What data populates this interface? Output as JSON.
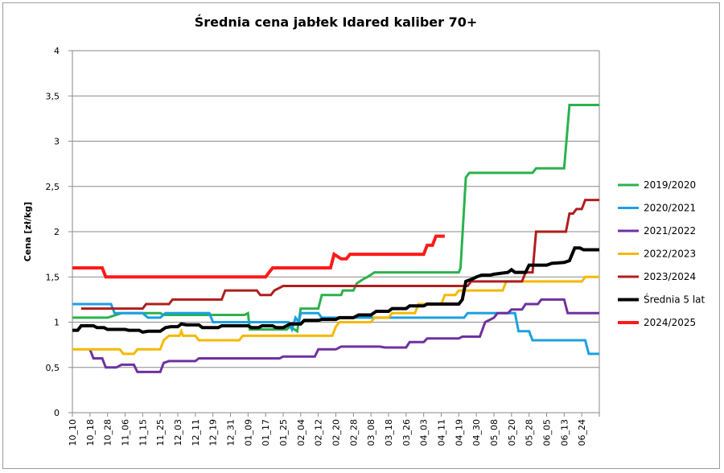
{
  "chart_data": {
    "type": "line",
    "title": "Średnia cena jabłek Idared kaliber 70+",
    "ylabel": "Cena [zł/kg]",
    "xlabel": "",
    "ylim": [
      0,
      4
    ],
    "y_ticks": [
      "0",
      "0,5",
      "1",
      "1,5",
      "2",
      "2,5",
      "3",
      "3,5",
      "4"
    ],
    "y_tick_values": [
      0,
      0.5,
      1,
      1.5,
      2,
      2.5,
      3,
      3.5,
      4
    ],
    "x_ticks": [
      "10_10",
      "10_18",
      "10_28",
      "11_06",
      "11_15",
      "11_25",
      "12_03",
      "12_11",
      "12_19",
      "12_31",
      "01_09",
      "01_17",
      "01_25",
      "02_04",
      "02_12",
      "02_20",
      "02_28",
      "03_08",
      "03_18",
      "03_26",
      "04_03",
      "04_11",
      "04_19",
      "04_30",
      "05_08",
      "05_20",
      "05_28",
      "06_05",
      "06_13",
      "06_24"
    ],
    "grid": "horizontal",
    "legend_position": "right",
    "series": [
      {
        "name": "2019/2020",
        "color": "#2bb24c",
        "width": 3,
        "points": [
          [
            0,
            1.05
          ],
          [
            2,
            1.05
          ],
          [
            2.8,
            1.1
          ],
          [
            5,
            1.1
          ],
          [
            5.2,
            1.08
          ],
          [
            9.8,
            1.08
          ],
          [
            10,
            1.1
          ],
          [
            10.1,
            0.92
          ],
          [
            12.2,
            0.92
          ],
          [
            12.4,
            0.95
          ],
          [
            12.8,
            0.9
          ],
          [
            13,
            1.15
          ],
          [
            14,
            1.15
          ],
          [
            14.2,
            1.3
          ],
          [
            15.3,
            1.3
          ],
          [
            15.4,
            1.35
          ],
          [
            16,
            1.35
          ],
          [
            16.2,
            1.43
          ],
          [
            16.6,
            1.48
          ],
          [
            16.8,
            1.5
          ],
          [
            17.2,
            1.55
          ],
          [
            22,
            1.55
          ],
          [
            22.1,
            1.6
          ],
          [
            22.4,
            2.6
          ],
          [
            22.6,
            2.65
          ],
          [
            26.2,
            2.65
          ],
          [
            26.4,
            2.7
          ],
          [
            28,
            2.7
          ],
          [
            28.3,
            3.4
          ],
          [
            30,
            3.4
          ]
        ]
      },
      {
        "name": "2020/2021",
        "color": "#1ba0e2",
        "width": 3,
        "points": [
          [
            0,
            1.2
          ],
          [
            2.2,
            1.2
          ],
          [
            2.4,
            1.1
          ],
          [
            4,
            1.1
          ],
          [
            4.3,
            1.05
          ],
          [
            5,
            1.05
          ],
          [
            5.3,
            1.1
          ],
          [
            7.8,
            1.1
          ],
          [
            8,
            1.0
          ],
          [
            12.3,
            1.0
          ],
          [
            12.5,
            0.92
          ],
          [
            12.7,
            1.05
          ],
          [
            12.9,
            1.0
          ],
          [
            13,
            1.1
          ],
          [
            14,
            1.1
          ],
          [
            14.2,
            1.05
          ],
          [
            22.3,
            1.05
          ],
          [
            22.5,
            1.1
          ],
          [
            25.2,
            1.1
          ],
          [
            25.4,
            0.9
          ],
          [
            26,
            0.9
          ],
          [
            26.2,
            0.8
          ],
          [
            29.2,
            0.8
          ],
          [
            29.4,
            0.65
          ],
          [
            30,
            0.65
          ]
        ]
      },
      {
        "name": "2021/2022",
        "color": "#7030a0",
        "width": 3,
        "points": [
          [
            1,
            0.7
          ],
          [
            1.2,
            0.6
          ],
          [
            1.7,
            0.6
          ],
          [
            1.9,
            0.5
          ],
          [
            2.5,
            0.5
          ],
          [
            2.8,
            0.53
          ],
          [
            3.5,
            0.53
          ],
          [
            3.7,
            0.45
          ],
          [
            5,
            0.45
          ],
          [
            5.2,
            0.55
          ],
          [
            5.5,
            0.57
          ],
          [
            7,
            0.57
          ],
          [
            7.2,
            0.6
          ],
          [
            11.8,
            0.6
          ],
          [
            12,
            0.62
          ],
          [
            13.8,
            0.62
          ],
          [
            14,
            0.7
          ],
          [
            15,
            0.7
          ],
          [
            15.3,
            0.73
          ],
          [
            17.5,
            0.73
          ],
          [
            17.8,
            0.72
          ],
          [
            19,
            0.72
          ],
          [
            19.2,
            0.78
          ],
          [
            20,
            0.78
          ],
          [
            20.2,
            0.82
          ],
          [
            22,
            0.82
          ],
          [
            22.2,
            0.84
          ],
          [
            23.2,
            0.84
          ],
          [
            23.5,
            1.0
          ],
          [
            24,
            1.05
          ],
          [
            24.2,
            1.1
          ],
          [
            24.8,
            1.1
          ],
          [
            25,
            1.14
          ],
          [
            25.6,
            1.14
          ],
          [
            25.8,
            1.2
          ],
          [
            26.5,
            1.2
          ],
          [
            26.7,
            1.25
          ],
          [
            28,
            1.25
          ],
          [
            28.2,
            1.1
          ],
          [
            30,
            1.1
          ]
        ]
      },
      {
        "name": "2022/2023",
        "color": "#f5b800",
        "width": 3,
        "points": [
          [
            0,
            0.7
          ],
          [
            2.7,
            0.7
          ],
          [
            2.9,
            0.65
          ],
          [
            3.5,
            0.65
          ],
          [
            3.7,
            0.7
          ],
          [
            5,
            0.7
          ],
          [
            5.2,
            0.8
          ],
          [
            5.5,
            0.85
          ],
          [
            6.1,
            0.85
          ],
          [
            6.2,
            0.9
          ],
          [
            6.3,
            0.85
          ],
          [
            7,
            0.85
          ],
          [
            7.2,
            0.8
          ],
          [
            9.5,
            0.8
          ],
          [
            9.7,
            0.85
          ],
          [
            14.8,
            0.85
          ],
          [
            15,
            0.95
          ],
          [
            15.2,
            1.0
          ],
          [
            17,
            1.0
          ],
          [
            17.2,
            1.05
          ],
          [
            18,
            1.05
          ],
          [
            18.2,
            1.1
          ],
          [
            19.5,
            1.1
          ],
          [
            19.7,
            1.2
          ],
          [
            21,
            1.2
          ],
          [
            21.2,
            1.3
          ],
          [
            21.8,
            1.3
          ],
          [
            22,
            1.35
          ],
          [
            24.5,
            1.35
          ],
          [
            24.7,
            1.45
          ],
          [
            29,
            1.45
          ],
          [
            29.2,
            1.5
          ],
          [
            30,
            1.5
          ]
        ]
      },
      {
        "name": "2023/2024",
        "color": "#b01e1e",
        "width": 3,
        "points": [
          [
            0.5,
            1.15
          ],
          [
            4,
            1.15
          ],
          [
            4.2,
            1.2
          ],
          [
            5.5,
            1.2
          ],
          [
            5.7,
            1.25
          ],
          [
            8.5,
            1.25
          ],
          [
            8.7,
            1.35
          ],
          [
            10.5,
            1.35
          ],
          [
            10.7,
            1.3
          ],
          [
            11.3,
            1.3
          ],
          [
            11.5,
            1.35
          ],
          [
            12,
            1.4
          ],
          [
            22.5,
            1.4
          ],
          [
            22.7,
            1.45
          ],
          [
            25.6,
            1.45
          ],
          [
            25.8,
            1.55
          ],
          [
            26.2,
            1.55
          ],
          [
            26.4,
            2.0
          ],
          [
            28.1,
            2.0
          ],
          [
            28.3,
            2.2
          ],
          [
            28.5,
            2.2
          ],
          [
            28.7,
            2.25
          ],
          [
            29,
            2.25
          ],
          [
            29.2,
            2.35
          ],
          [
            30,
            2.35
          ]
        ]
      },
      {
        "name": "Średnia 5 lat",
        "color": "#000000",
        "width": 4,
        "points": [
          [
            0,
            0.91
          ],
          [
            0.3,
            0.91
          ],
          [
            0.5,
            0.96
          ],
          [
            1.2,
            0.96
          ],
          [
            1.4,
            0.94
          ],
          [
            1.8,
            0.94
          ],
          [
            2,
            0.92
          ],
          [
            3,
            0.92
          ],
          [
            3.2,
            0.91
          ],
          [
            3.8,
            0.91
          ],
          [
            4,
            0.89
          ],
          [
            4.3,
            0.9
          ],
          [
            5,
            0.9
          ],
          [
            5.3,
            0.94
          ],
          [
            5.6,
            0.95
          ],
          [
            6,
            0.95
          ],
          [
            6.2,
            0.98
          ],
          [
            6.5,
            0.97
          ],
          [
            7.2,
            0.97
          ],
          [
            7.4,
            0.94
          ],
          [
            8.3,
            0.94
          ],
          [
            8.5,
            0.96
          ],
          [
            10,
            0.96
          ],
          [
            10.2,
            0.94
          ],
          [
            10.6,
            0.94
          ],
          [
            10.8,
            0.96
          ],
          [
            11.4,
            0.96
          ],
          [
            11.6,
            0.94
          ],
          [
            12,
            0.94
          ],
          [
            12.4,
            0.98
          ],
          [
            13,
            0.98
          ],
          [
            13.2,
            1.02
          ],
          [
            14,
            1.02
          ],
          [
            14.2,
            1.03
          ],
          [
            15,
            1.03
          ],
          [
            15.2,
            1.05
          ],
          [
            16,
            1.05
          ],
          [
            16.3,
            1.08
          ],
          [
            17,
            1.08
          ],
          [
            17.3,
            1.12
          ],
          [
            18,
            1.12
          ],
          [
            18.2,
            1.15
          ],
          [
            19,
            1.15
          ],
          [
            19.2,
            1.18
          ],
          [
            20,
            1.18
          ],
          [
            20.2,
            1.2
          ],
          [
            22,
            1.2
          ],
          [
            22.2,
            1.25
          ],
          [
            22.4,
            1.45
          ],
          [
            22.8,
            1.48
          ],
          [
            23,
            1.5
          ],
          [
            23.3,
            1.52
          ],
          [
            23.8,
            1.52
          ],
          [
            24,
            1.53
          ],
          [
            24.8,
            1.55
          ],
          [
            25,
            1.58
          ],
          [
            25.2,
            1.55
          ],
          [
            25.8,
            1.55
          ],
          [
            26,
            1.63
          ],
          [
            27,
            1.63
          ],
          [
            27.3,
            1.65
          ],
          [
            28,
            1.66
          ],
          [
            28.3,
            1.68
          ],
          [
            28.6,
            1.82
          ],
          [
            28.9,
            1.82
          ],
          [
            29.1,
            1.8
          ],
          [
            30,
            1.8
          ]
        ]
      },
      {
        "name": "2024/2025",
        "color": "#ff1a1a",
        "width": 4,
        "points": [
          [
            0,
            1.6
          ],
          [
            1.7,
            1.6
          ],
          [
            1.9,
            1.5
          ],
          [
            11,
            1.5
          ],
          [
            11.2,
            1.55
          ],
          [
            11.4,
            1.6
          ],
          [
            14.7,
            1.6
          ],
          [
            14.9,
            1.75
          ],
          [
            15.3,
            1.7
          ],
          [
            15.6,
            1.7
          ],
          [
            15.8,
            1.75
          ],
          [
            20,
            1.75
          ],
          [
            20.2,
            1.85
          ],
          [
            20.5,
            1.85
          ],
          [
            20.7,
            1.95
          ],
          [
            21.2,
            1.95
          ]
        ]
      }
    ]
  }
}
